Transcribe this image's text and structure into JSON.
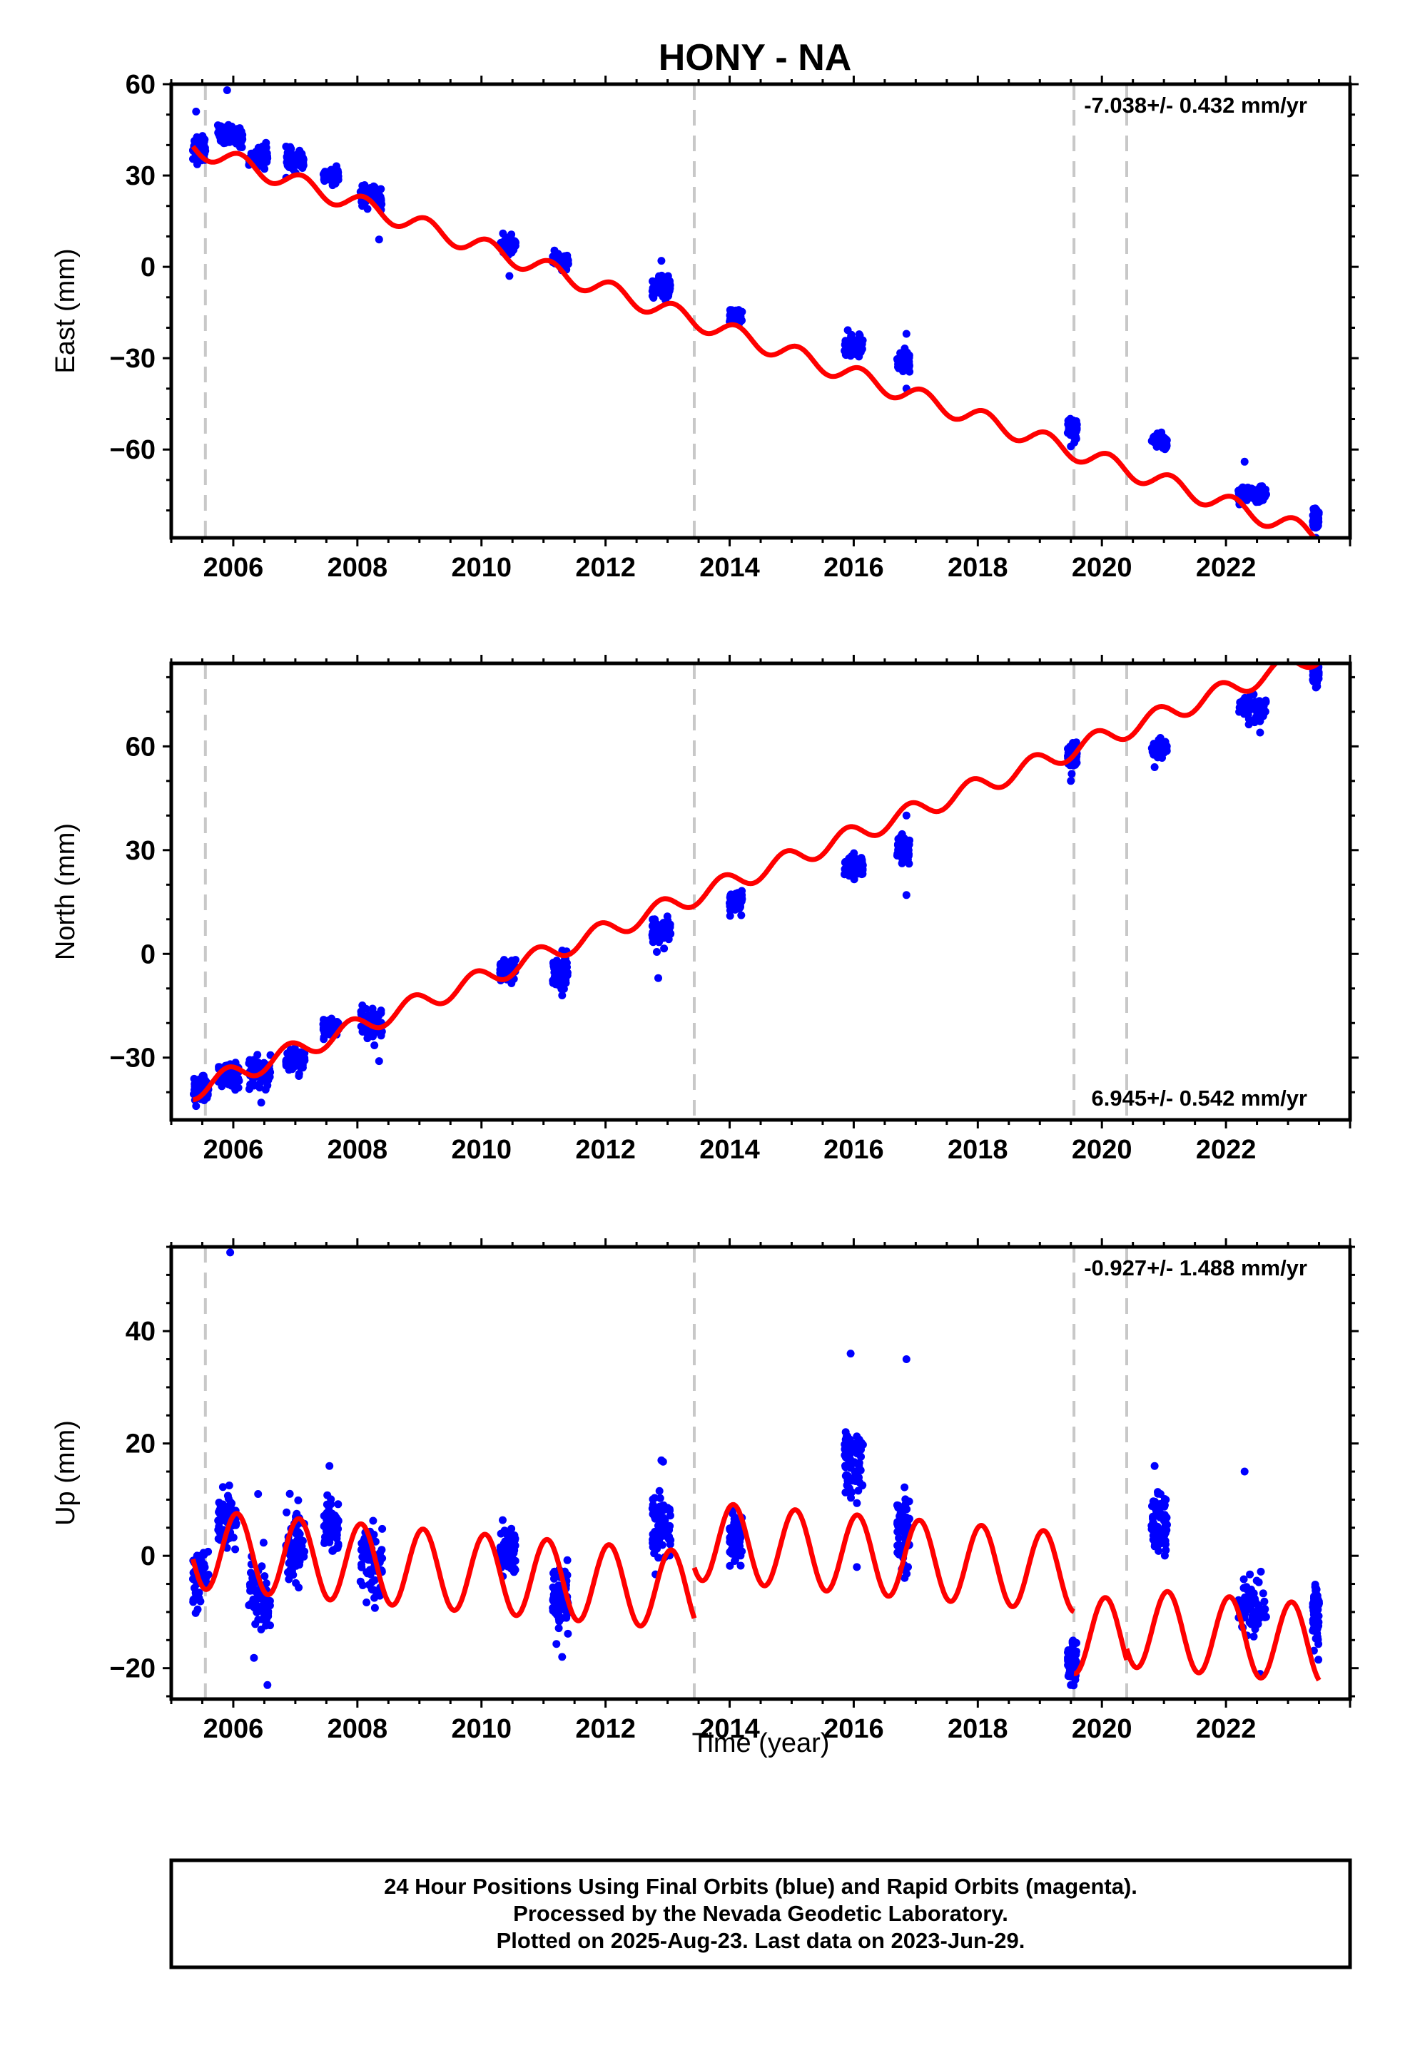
{
  "chart_data": {
    "type": "scatter",
    "title": "HONY - NA",
    "x_label": "Time (year)",
    "x_range": [
      2005.0,
      2024.0
    ],
    "x_ticks": [
      2006,
      2008,
      2010,
      2012,
      2014,
      2016,
      2018,
      2020,
      2022
    ],
    "x_tick_labels": [
      "2006",
      "2008",
      "2010",
      "2012",
      "2014",
      "2016",
      "2018",
      "2020",
      "2022"
    ],
    "vertical_dashed_lines": [
      2005.55,
      2013.43,
      2019.55,
      2020.4
    ],
    "colors": {
      "observations": "#0000ff",
      "model": "#ff0000",
      "breaks": "#c8c8c8",
      "frame": "#000000"
    },
    "panels": [
      {
        "ylabel": "East (mm)",
        "yrange": [
          -89,
          60
        ],
        "yticks": [
          60,
          30,
          0,
          -30,
          -60
        ],
        "ytick_labels": [
          "60",
          "30",
          "0",
          "−30",
          "−60"
        ],
        "rate_label": "-7.038+/- 0.432 mm/yr",
        "rate_position": "top-right",
        "model": {
          "intercept": 39.4,
          "slope": -7.038,
          "start": 2005.35,
          "annual_amplitude": 3.0,
          "annual_phase": 0.9,
          "segments": [
            [
              2005.35,
              2013.43
            ],
            [
              2013.43,
              2019.55
            ],
            [
              2019.55,
              2020.4
            ],
            [
              2020.4,
              2023.5
            ]
          ],
          "offsets": [
            0,
            0,
            0,
            0
          ]
        },
        "observations": [
          {
            "x": [
              2005.35,
              2005.55
            ],
            "y": [
              39,
              4
            ]
          },
          {
            "x": [
              2005.75,
              2006.15
            ],
            "y": [
              43,
              3
            ]
          },
          {
            "x": [
              2006.25,
              2006.55
            ],
            "y": [
              36,
              3
            ]
          },
          {
            "x": [
              2006.85,
              2007.15
            ],
            "y": [
              35,
              3
            ]
          },
          {
            "x": [
              2007.45,
              2007.7
            ],
            "y": [
              30,
              2
            ]
          },
          {
            "x": [
              2008.05,
              2008.4
            ],
            "y": [
              23,
              3
            ]
          },
          {
            "x": [
              2010.3,
              2010.55
            ],
            "y": [
              7,
              3
            ]
          },
          {
            "x": [
              2011.15,
              2011.4
            ],
            "y": [
              2,
              2
            ]
          },
          {
            "x": [
              2012.75,
              2013.05
            ],
            "y": [
              -7,
              3
            ]
          },
          {
            "x": [
              2014.0,
              2014.2
            ],
            "y": [
              -16,
              2
            ]
          },
          {
            "x": [
              2015.85,
              2016.15
            ],
            "y": [
              -26,
              3
            ]
          },
          {
            "x": [
              2016.7,
              2016.9
            ],
            "y": [
              -31,
              3
            ]
          },
          {
            "x": [
              2019.45,
              2019.6
            ],
            "y": [
              -53,
              3
            ]
          },
          {
            "x": [
              2020.8,
              2021.05
            ],
            "y": [
              -57,
              2
            ]
          },
          {
            "x": [
              2022.2,
              2022.65
            ],
            "y": [
              -75,
              3
            ]
          },
          {
            "x": [
              2023.4,
              2023.5
            ],
            "y": [
              -83,
              3
            ]
          }
        ],
        "outliers": [
          [
            2005.4,
            51
          ],
          [
            2005.9,
            58
          ],
          [
            2008.35,
            9
          ],
          [
            2010.45,
            -3
          ],
          [
            2012.9,
            2
          ],
          [
            2016.85,
            -22
          ],
          [
            2016.85,
            -40
          ],
          [
            2019.5,
            -59
          ],
          [
            2022.3,
            -64
          ],
          [
            2023.45,
            -89
          ]
        ]
      },
      {
        "ylabel": "North (mm)",
        "yrange": [
          -48,
          84
        ],
        "yticks": [
          60,
          30,
          0,
          -30
        ],
        "ytick_labels": [
          "60",
          "30",
          "0",
          "−30"
        ],
        "rate_label": "6.945+/- 0.542 mm/yr",
        "rate_position": "bottom-right",
        "model": {
          "intercept": -39.5,
          "slope": 6.945,
          "start": 2005.35,
          "annual_amplitude": 2.8,
          "annual_phase": 2.2,
          "segments": [
            [
              2005.35,
              2013.43
            ],
            [
              2013.43,
              2019.55
            ],
            [
              2019.55,
              2020.4
            ],
            [
              2020.4,
              2023.5
            ]
          ],
          "offsets": [
            0,
            0,
            0,
            0
          ]
        },
        "observations": [
          {
            "x": [
              2005.35,
              2005.6
            ],
            "y": [
              -39,
              3
            ]
          },
          {
            "x": [
              2005.75,
              2006.1
            ],
            "y": [
              -35,
              3
            ]
          },
          {
            "x": [
              2006.25,
              2006.6
            ],
            "y": [
              -34,
              4
            ]
          },
          {
            "x": [
              2006.85,
              2007.15
            ],
            "y": [
              -31,
              3
            ]
          },
          {
            "x": [
              2007.45,
              2007.7
            ],
            "y": [
              -21,
              2
            ]
          },
          {
            "x": [
              2008.05,
              2008.4
            ],
            "y": [
              -20,
              4
            ]
          },
          {
            "x": [
              2010.3,
              2010.55
            ],
            "y": [
              -5,
              3
            ]
          },
          {
            "x": [
              2011.15,
              2011.4
            ],
            "y": [
              -5,
              4
            ]
          },
          {
            "x": [
              2012.75,
              2013.05
            ],
            "y": [
              6,
              4
            ]
          },
          {
            "x": [
              2014.0,
              2014.2
            ],
            "y": [
              15,
              3
            ]
          },
          {
            "x": [
              2015.85,
              2016.15
            ],
            "y": [
              25,
              3
            ]
          },
          {
            "x": [
              2016.7,
              2016.9
            ],
            "y": [
              30,
              4
            ]
          },
          {
            "x": [
              2019.45,
              2019.6
            ],
            "y": [
              57,
              3
            ]
          },
          {
            "x": [
              2020.8,
              2021.05
            ],
            "y": [
              59,
              2
            ]
          },
          {
            "x": [
              2022.2,
              2022.65
            ],
            "y": [
              71,
              4
            ]
          },
          {
            "x": [
              2023.4,
              2023.5
            ],
            "y": [
              81,
              2
            ]
          }
        ],
        "outliers": [
          [
            2005.4,
            -44
          ],
          [
            2006.45,
            -43
          ],
          [
            2008.35,
            -31
          ],
          [
            2011.3,
            -12
          ],
          [
            2012.85,
            -7
          ],
          [
            2016.85,
            17
          ],
          [
            2016.85,
            40
          ],
          [
            2019.5,
            50
          ],
          [
            2020.85,
            54
          ],
          [
            2022.55,
            64
          ],
          [
            2023.45,
            77
          ]
        ]
      },
      {
        "ylabel": "Up (mm)",
        "yrange": [
          -25.5,
          55
        ],
        "yticks": [
          40,
          20,
          0,
          -20
        ],
        "ytick_labels": [
          "40",
          "20",
          "0",
          "−20"
        ],
        "rate_label": "-0.927+/- 1.488 mm/yr",
        "rate_position": "top-right",
        "model": {
          "intercept": 1.2,
          "slope": -0.927,
          "start": 2005.35,
          "annual_amplitude": 7.0,
          "annual_phase": 1.2,
          "segments": [
            [
              2005.35,
              2013.43
            ],
            [
              2013.43,
              2019.55
            ],
            [
              2019.55,
              2020.4
            ],
            [
              2020.4,
              2023.5
            ]
          ],
          "offsets": [
            0,
            9,
            -2,
            0
          ]
        },
        "observations": [
          {
            "x": [
              2005.35,
              2005.6
            ],
            "y": [
              -3,
              5
            ]
          },
          {
            "x": [
              2005.75,
              2006.05
            ],
            "y": [
              7,
              4
            ]
          },
          {
            "x": [
              2006.25,
              2006.6
            ],
            "y": [
              -7,
              6
            ]
          },
          {
            "x": [
              2006.85,
              2007.15
            ],
            "y": [
              2,
              6
            ]
          },
          {
            "x": [
              2007.45,
              2007.7
            ],
            "y": [
              5,
              5
            ]
          },
          {
            "x": [
              2008.05,
              2008.4
            ],
            "y": [
              -1,
              5
            ]
          },
          {
            "x": [
              2010.3,
              2010.55
            ],
            "y": [
              1,
              4
            ]
          },
          {
            "x": [
              2011.15,
              2011.4
            ],
            "y": [
              -8,
              5
            ]
          },
          {
            "x": [
              2012.75,
              2013.05
            ],
            "y": [
              5,
              6
            ]
          },
          {
            "x": [
              2014.0,
              2014.2
            ],
            "y": [
              3,
              4
            ]
          },
          {
            "x": [
              2015.85,
              2016.15
            ],
            "y": [
              17,
              6
            ]
          },
          {
            "x": [
              2016.7,
              2016.9
            ],
            "y": [
              4,
              6
            ]
          },
          {
            "x": [
              2019.45,
              2019.6
            ],
            "y": [
              -19,
              3
            ]
          },
          {
            "x": [
              2020.8,
              2021.05
            ],
            "y": [
              5,
              5
            ]
          },
          {
            "x": [
              2022.2,
              2022.65
            ],
            "y": [
              -9,
              5
            ]
          },
          {
            "x": [
              2023.4,
              2023.5
            ],
            "y": [
              -10,
              5
            ]
          }
        ],
        "outliers": [
          [
            2005.95,
            54
          ],
          [
            2015.95,
            36
          ],
          [
            2016.85,
            35
          ],
          [
            2007.55,
            16
          ],
          [
            2012.9,
            17
          ],
          [
            2020.85,
            16
          ],
          [
            2022.3,
            15
          ],
          [
            2006.55,
            -23
          ],
          [
            2019.5,
            -23
          ],
          [
            2022.55,
            -21
          ],
          [
            2011.3,
            -18
          ],
          [
            2016.05,
            -2
          ],
          [
            2006.4,
            11
          ]
        ]
      }
    ]
  },
  "footer": {
    "line1": "24 Hour Positions Using Final Orbits (blue) and Rapid Orbits (magenta).",
    "line2": "Processed by the Nevada Geodetic Laboratory.",
    "line3": "Plotted on 2025-Aug-23. Last data on 2023-Jun-29."
  }
}
